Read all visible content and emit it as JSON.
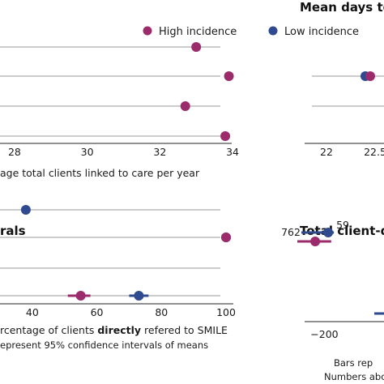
{
  "colors": {
    "high": "#9b2b6b",
    "low": "#2f4a8e"
  },
  "legend": {
    "high_label": "High incidence",
    "low_label": "Low incidence"
  },
  "chart_data": [
    {
      "id": "clients-linked",
      "type": "scatter",
      "title": "",
      "xlabel": "age total clients linked to care per year",
      "xticks": [
        28,
        30,
        32,
        34
      ],
      "xlim": [
        27.6,
        34.2
      ],
      "rows": 4,
      "series": [
        {
          "name": "High incidence",
          "points": [
            {
              "row": 1,
              "x": 33.0
            },
            {
              "row": 2,
              "x": 33.9
            },
            {
              "row": 3,
              "x": 32.7
            },
            {
              "row": 4,
              "x": 33.8
            }
          ]
        }
      ],
      "grid": true
    },
    {
      "id": "mean-days",
      "type": "scatter",
      "title": "Mean days to",
      "xlabel": "",
      "xticks": [
        22,
        22.5,
        23
      ],
      "tick_labels": [
        "22",
        "22.5",
        "2"
      ],
      "xlim": [
        21.85,
        23.1
      ],
      "rows": 2,
      "series": [
        {
          "name": "Low incidence",
          "points": [
            {
              "row": 1,
              "x": 22.4
            }
          ]
        },
        {
          "name": "High incidence",
          "points": [
            {
              "row": 1,
              "x": 22.45
            }
          ]
        }
      ],
      "grid": true
    },
    {
      "id": "directly-referred",
      "type": "scatter",
      "title": "rals",
      "xlabel_parts": [
        "rcentage of clients ",
        "directly",
        " refered to SMILE"
      ],
      "note": "epresent 95%  confidence intervals of means",
      "xticks": [
        40,
        60,
        80,
        100
      ],
      "xlim": [
        30,
        101
      ],
      "rows": 4,
      "series": [
        {
          "name": "Low incidence",
          "points": [
            {
              "row": 1,
              "x": 38
            },
            {
              "row": 2,
              "x": 100
            },
            {
              "row": 4,
              "x": 73,
              "ci": [
                70,
                76
              ]
            }
          ]
        },
        {
          "name": "High incidence",
          "points": [
            {
              "row": 2,
              "x": 100
            },
            {
              "row": 4,
              "x": 55,
              "ci": [
                51,
                58
              ]
            }
          ]
        }
      ],
      "grid": true
    },
    {
      "id": "total-client-days",
      "type": "scatter",
      "title": "Total client-da",
      "xticks": [
        -200
      ],
      "tick_labels": [
        "−200"
      ],
      "xlim": [
        -300,
        20
      ],
      "rows": 3,
      "series": [
        {
          "name": "High incidence",
          "points": [
            {
              "row": 1,
              "x": -234,
              "ci": [
                -300,
                -175
              ],
              "label": "762"
            }
          ]
        },
        {
          "name": "Low incidence",
          "points": [
            {
              "row": 1,
              "x": -186,
              "ci": [
                -285,
                -165
              ],
              "label": "59"
            }
          ]
        }
      ],
      "footnotes": [
        "Bars rep",
        "Numbers abo"
      ],
      "grid": false
    }
  ]
}
